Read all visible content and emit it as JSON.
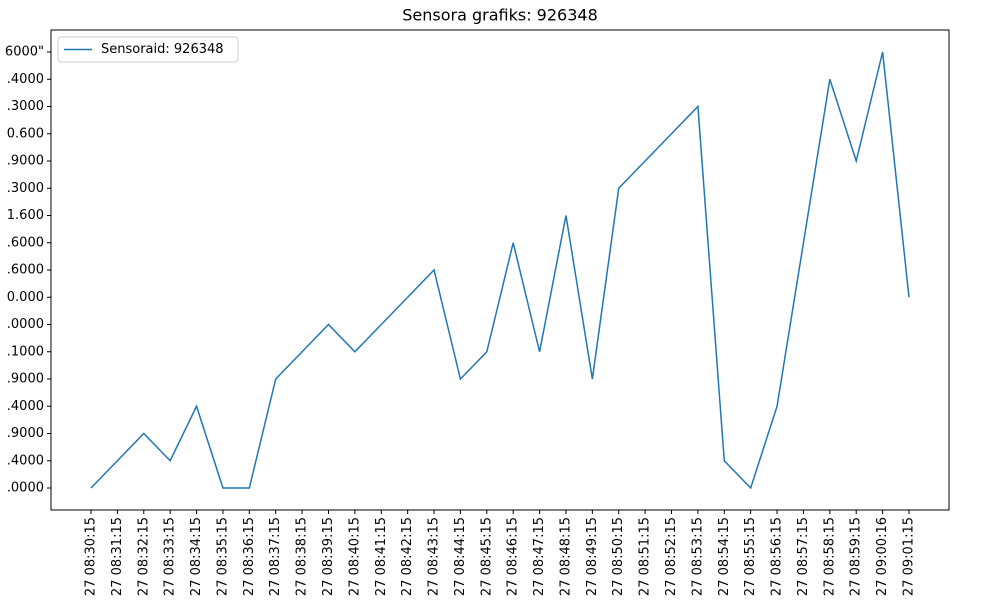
{
  "chart_data": {
    "type": "line",
    "title": "Sensora grafiks: 926348",
    "categories": [
      "27 08:30:15",
      "27 08:31:15",
      "27 08:32:15",
      "27 08:33:15",
      "27 08:34:15",
      "27 08:35:15",
      "27 08:36:15",
      "27 08:37:15",
      "27 08:38:15",
      "27 08:39:15",
      "27 08:40:15",
      "27 08:41:15",
      "27 08:42:15",
      "27 08:43:15",
      "27 08:44:15",
      "27 08:45:15",
      "27 08:46:15",
      "27 08:47:15",
      "27 08:48:15",
      "27 08:49:15",
      "27 08:50:15",
      "27 08:51:15",
      "27 08:52:15",
      "27 08:53:15",
      "27 08:54:15",
      "27 08:55:15",
      "27 08:56:15",
      "27 08:57:15",
      "27 08:58:15",
      "27 08:59:15",
      "27 09:00:16",
      "27 09:01:15"
    ],
    "y_categories": [
      ".0000",
      ".4000",
      ".9000",
      ".4000",
      ".9000",
      ".1000",
      ".0000",
      "0.000",
      ".6000",
      ".6000",
      "1.600",
      ".3000",
      ".9000",
      "0.600",
      ".3000",
      ".4000",
      "6000\""
    ],
    "series": [
      {
        "name": "Sensoraid: 926348",
        "color": "#1f77b4",
        "values": [
          0,
          1,
          2,
          1,
          3,
          0,
          0,
          4,
          5,
          6,
          5,
          6,
          7,
          8,
          4,
          5,
          9,
          5,
          10,
          4,
          11,
          12,
          13,
          14,
          1,
          0,
          3,
          9,
          15,
          12,
          16,
          7
        ]
      }
    ],
    "legend": "upper left"
  }
}
